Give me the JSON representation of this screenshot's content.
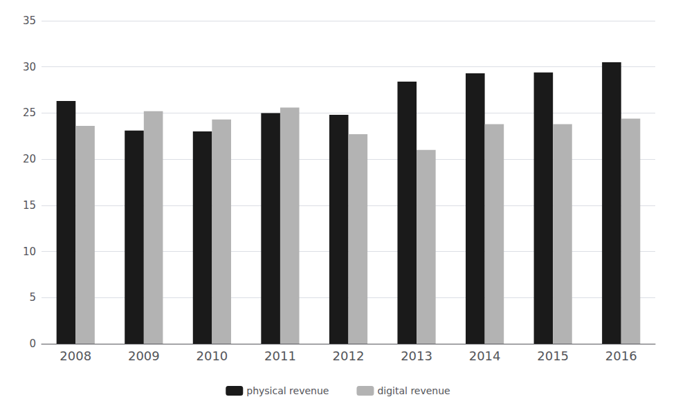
{
  "chart_data": {
    "type": "bar",
    "categories": [
      "2008",
      "2009",
      "2010",
      "2011",
      "2012",
      "2013",
      "2014",
      "2015",
      "2016"
    ],
    "series": [
      {
        "name": "physical revenue",
        "color": "#1a1a1a",
        "values": [
          26.3,
          23.1,
          23.0,
          25.0,
          24.8,
          28.4,
          29.3,
          29.4,
          30.5
        ]
      },
      {
        "name": "digital revenue",
        "color": "#b3b3b3",
        "values": [
          23.6,
          25.2,
          24.3,
          25.6,
          22.7,
          21.0,
          23.8,
          23.8,
          24.4
        ]
      }
    ],
    "ylim": [
      0,
      35
    ],
    "yticks": [
      0,
      5,
      10,
      15,
      20,
      25,
      30,
      35
    ],
    "grid": true,
    "legend": "bottom"
  }
}
